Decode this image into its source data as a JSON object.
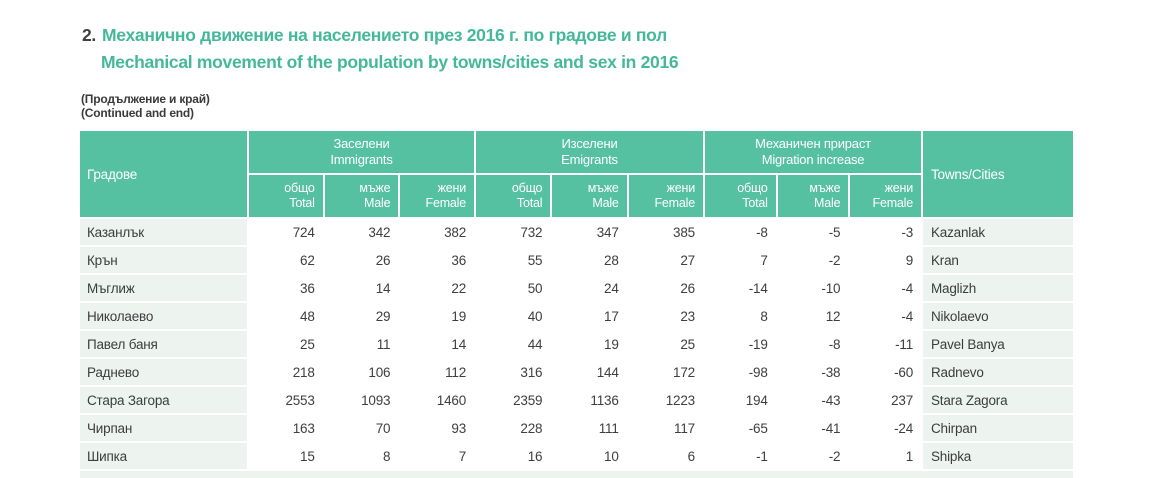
{
  "page": {
    "title_number": "2.",
    "title_bg": "Механично движение на населението през 2016 г. по градове и пол",
    "title_en": "Mechanical movement of the population by towns/cities and sex in 2016",
    "subtitle_bg": "(Продължение и край)",
    "subtitle_en": "(Continued and end)"
  },
  "table": {
    "col_towns_bg": "Градове",
    "col_towns_en": "Towns/Cities",
    "groups": [
      {
        "label_bg": "Заселени",
        "label_en": "Immigrants"
      },
      {
        "label_bg": "Изселени",
        "label_en": "Emigrants"
      },
      {
        "label_bg": "Механичен прираст",
        "label_en": "Migration increase"
      }
    ],
    "subcols": [
      {
        "label_bg": "общо",
        "label_en": "Total"
      },
      {
        "label_bg": "мъже",
        "label_en": "Male"
      },
      {
        "label_bg": "жени",
        "label_en": "Female"
      }
    ],
    "rows": [
      {
        "town_bg": "Казанлък",
        "town_en": "Kazanlak",
        "values": [
          724,
          342,
          382,
          732,
          347,
          385,
          -8,
          -5,
          -3
        ]
      },
      {
        "town_bg": "Крън",
        "town_en": "Kran",
        "values": [
          62,
          26,
          36,
          55,
          28,
          27,
          7,
          -2,
          9
        ]
      },
      {
        "town_bg": "Мъглиж",
        "town_en": "Maglizh",
        "values": [
          36,
          14,
          22,
          50,
          24,
          26,
          -14,
          -10,
          -4
        ]
      },
      {
        "town_bg": "Николаево",
        "town_en": "Nikolaevo",
        "values": [
          48,
          29,
          19,
          40,
          17,
          23,
          8,
          12,
          -4
        ]
      },
      {
        "town_bg": "Павел баня",
        "town_en": "Pavel Banya",
        "values": [
          25,
          11,
          14,
          44,
          19,
          25,
          -19,
          -8,
          -11
        ]
      },
      {
        "town_bg": "Раднево",
        "town_en": "Radnevo",
        "values": [
          218,
          106,
          112,
          316,
          144,
          172,
          -98,
          -38,
          -60
        ]
      },
      {
        "town_bg": "Стара Загора",
        "town_en": "Stara Zagora",
        "values": [
          2553,
          1093,
          1460,
          2359,
          1136,
          1223,
          194,
          -43,
          237
        ]
      },
      {
        "town_bg": "Чирпан",
        "town_en": "Chirpan",
        "values": [
          163,
          70,
          93,
          228,
          111,
          117,
          -65,
          -41,
          -24
        ]
      },
      {
        "town_bg": "Шипка",
        "town_en": "Shipka",
        "values": [
          15,
          8,
          7,
          16,
          10,
          6,
          -1,
          -2,
          1
        ]
      }
    ]
  },
  "colors": {
    "accent_teal": "#44b89a",
    "header_green": "#55c1a0",
    "row_tint": "#edf4f0",
    "text_dark": "#3c3c3c"
  }
}
